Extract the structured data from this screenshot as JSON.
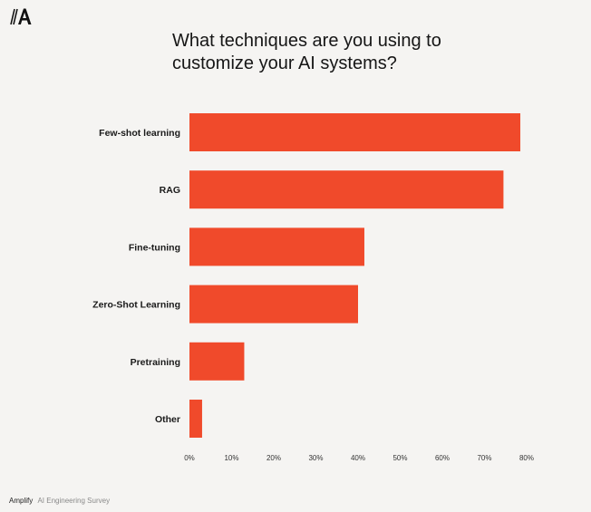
{
  "brand": {
    "logo_icon": "amplify-logo-icon",
    "name": "Amplify",
    "source": "AI Engineering Survey"
  },
  "chart_data": {
    "type": "bar",
    "orientation": "horizontal",
    "title": "What techniques are you using to\ncustomize your AI systems?",
    "xlabel": "",
    "ylabel": "",
    "categories": [
      "Few-shot learning",
      "RAG",
      "Fine-tuning",
      "Zero-Shot Learning",
      "Pretraining",
      "Other"
    ],
    "values": [
      78.5,
      74.5,
      41.5,
      40,
      13,
      3
    ],
    "xlim": [
      0,
      80
    ],
    "x_ticks": [
      0,
      10,
      20,
      30,
      40,
      50,
      60,
      70,
      80
    ],
    "tick_format": "%",
    "bar_color": "#f04a2b",
    "grid": false,
    "legend": "none"
  }
}
